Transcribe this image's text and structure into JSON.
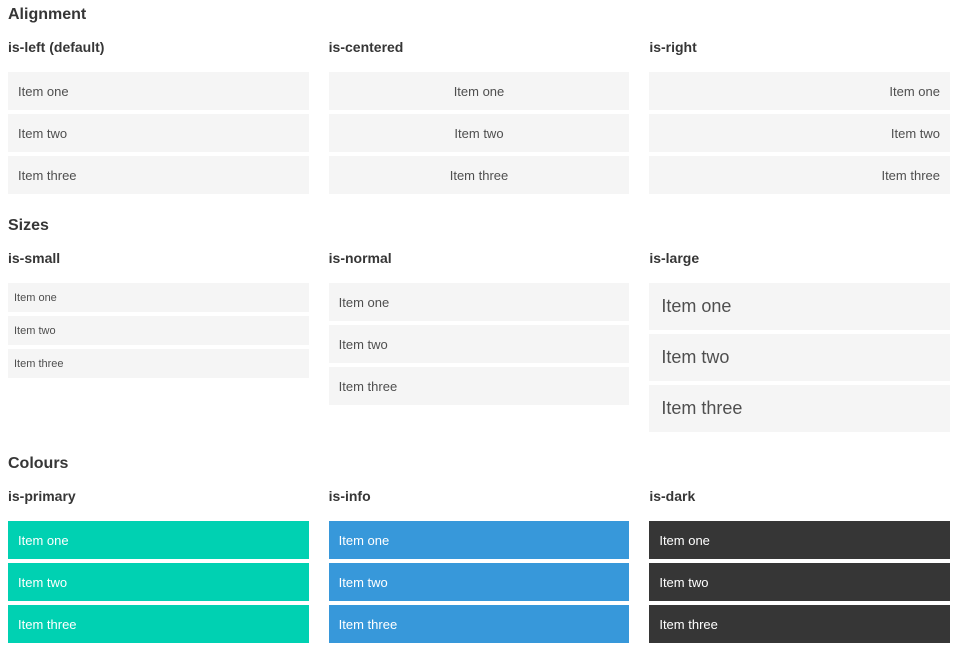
{
  "sections": [
    {
      "title": "Alignment",
      "variants": [
        {
          "label": "is-left (default)",
          "items": [
            "Item one",
            "Item two",
            "Item three"
          ]
        },
        {
          "label": "is-centered",
          "items": [
            "Item one",
            "Item two",
            "Item three"
          ]
        },
        {
          "label": "is-right",
          "items": [
            "Item one",
            "Item two",
            "Item three"
          ]
        }
      ]
    },
    {
      "title": "Sizes",
      "variants": [
        {
          "label": "is-small",
          "items": [
            "Item one",
            "Item two",
            "Item three"
          ]
        },
        {
          "label": "is-normal",
          "items": [
            "Item one",
            "Item two",
            "Item three"
          ]
        },
        {
          "label": "is-large",
          "items": [
            "Item one",
            "Item two",
            "Item three"
          ]
        }
      ]
    },
    {
      "title": "Colours",
      "variants": [
        {
          "label": "is-primary",
          "items": [
            "Item one",
            "Item two",
            "Item three"
          ]
        },
        {
          "label": "is-info",
          "items": [
            "Item one",
            "Item two",
            "Item three"
          ]
        },
        {
          "label": "is-dark",
          "items": [
            "Item one",
            "Item two",
            "Item three"
          ]
        }
      ]
    }
  ],
  "colors": {
    "item_bg": "#f5f5f5",
    "item_text": "#4f4f4f",
    "heading_text": "#363636",
    "primary": "#00d1b2",
    "info": "#3798da",
    "dark": "#363636",
    "colored_text": "#ffffff"
  }
}
